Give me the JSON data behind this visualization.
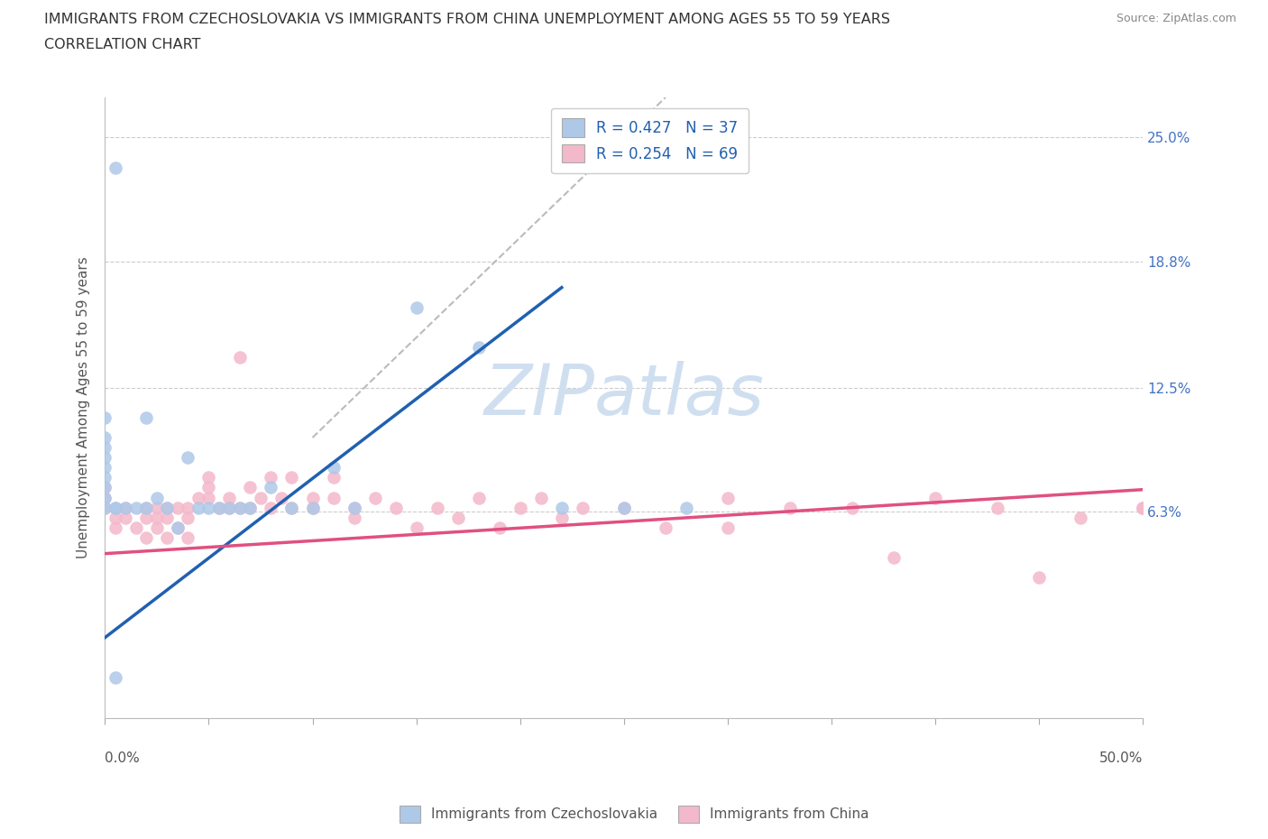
{
  "title_line1": "IMMIGRANTS FROM CZECHOSLOVAKIA VS IMMIGRANTS FROM CHINA UNEMPLOYMENT AMONG AGES 55 TO 59 YEARS",
  "title_line2": "CORRELATION CHART",
  "source_text": "Source: ZipAtlas.com",
  "ylabel": "Unemployment Among Ages 55 to 59 years",
  "ytick_labels": [
    "25.0%",
    "18.8%",
    "12.5%",
    "6.3%"
  ],
  "ytick_vals": [
    0.25,
    0.188,
    0.125,
    0.063
  ],
  "R_czech": 0.427,
  "N_czech": 37,
  "R_china": 0.254,
  "N_china": 69,
  "color_czech": "#aec8e8",
  "color_china": "#f4b8cb",
  "color_czech_line": "#2060b0",
  "color_china_line": "#e05080",
  "color_diag": "#bbbbbb",
  "czech_line_x": [
    0.0,
    0.22
  ],
  "czech_line_y": [
    0.0,
    0.175
  ],
  "china_line_x": [
    0.0,
    0.5
  ],
  "china_line_y": [
    0.042,
    0.074
  ],
  "diag_line_x": [
    0.1,
    0.27
  ],
  "diag_line_y": [
    0.1,
    0.27
  ],
  "scatter_czech_x": [
    0.005,
    0.0,
    0.0,
    0.0,
    0.005,
    0.0,
    0.0,
    0.0,
    0.0,
    0.0,
    0.0,
    0.005,
    0.01,
    0.015,
    0.02,
    0.02,
    0.025,
    0.03,
    0.035,
    0.04,
    0.045,
    0.05,
    0.055,
    0.06,
    0.065,
    0.07,
    0.08,
    0.09,
    0.1,
    0.11,
    0.12,
    0.15,
    0.18,
    0.22,
    0.25,
    0.28,
    0.005
  ],
  "scatter_czech_y": [
    0.235,
    0.065,
    0.07,
    0.075,
    0.065,
    0.08,
    0.085,
    0.09,
    0.095,
    0.1,
    0.11,
    0.065,
    0.065,
    0.065,
    0.11,
    0.065,
    0.07,
    0.065,
    0.055,
    0.09,
    0.065,
    0.065,
    0.065,
    0.065,
    0.065,
    0.065,
    0.075,
    0.065,
    0.065,
    0.085,
    0.065,
    0.165,
    0.145,
    0.065,
    0.065,
    0.065,
    -0.02
  ],
  "scatter_china_x": [
    0.0,
    0.0,
    0.0,
    0.005,
    0.005,
    0.01,
    0.01,
    0.015,
    0.02,
    0.02,
    0.02,
    0.025,
    0.025,
    0.025,
    0.03,
    0.03,
    0.03,
    0.035,
    0.035,
    0.04,
    0.04,
    0.04,
    0.045,
    0.05,
    0.05,
    0.05,
    0.055,
    0.06,
    0.06,
    0.065,
    0.065,
    0.07,
    0.07,
    0.075,
    0.08,
    0.08,
    0.085,
    0.09,
    0.09,
    0.1,
    0.1,
    0.11,
    0.11,
    0.12,
    0.12,
    0.13,
    0.14,
    0.15,
    0.16,
    0.17,
    0.18,
    0.19,
    0.2,
    0.21,
    0.22,
    0.23,
    0.25,
    0.27,
    0.3,
    0.33,
    0.36,
    0.4,
    0.43,
    0.47,
    0.5,
    0.5,
    0.3,
    0.38,
    0.45
  ],
  "scatter_china_y": [
    0.065,
    0.07,
    0.075,
    0.055,
    0.06,
    0.06,
    0.065,
    0.055,
    0.05,
    0.06,
    0.065,
    0.055,
    0.06,
    0.065,
    0.05,
    0.06,
    0.065,
    0.055,
    0.065,
    0.05,
    0.06,
    0.065,
    0.07,
    0.075,
    0.07,
    0.08,
    0.065,
    0.07,
    0.065,
    0.065,
    0.14,
    0.065,
    0.075,
    0.07,
    0.065,
    0.08,
    0.07,
    0.065,
    0.08,
    0.07,
    0.065,
    0.07,
    0.08,
    0.06,
    0.065,
    0.07,
    0.065,
    0.055,
    0.065,
    0.06,
    0.07,
    0.055,
    0.065,
    0.07,
    0.06,
    0.065,
    0.065,
    0.055,
    0.07,
    0.065,
    0.065,
    0.07,
    0.065,
    0.06,
    0.065,
    0.065,
    0.055,
    0.04,
    0.03
  ],
  "xlim": [
    0.0,
    0.5
  ],
  "ylim": [
    -0.04,
    0.27
  ]
}
